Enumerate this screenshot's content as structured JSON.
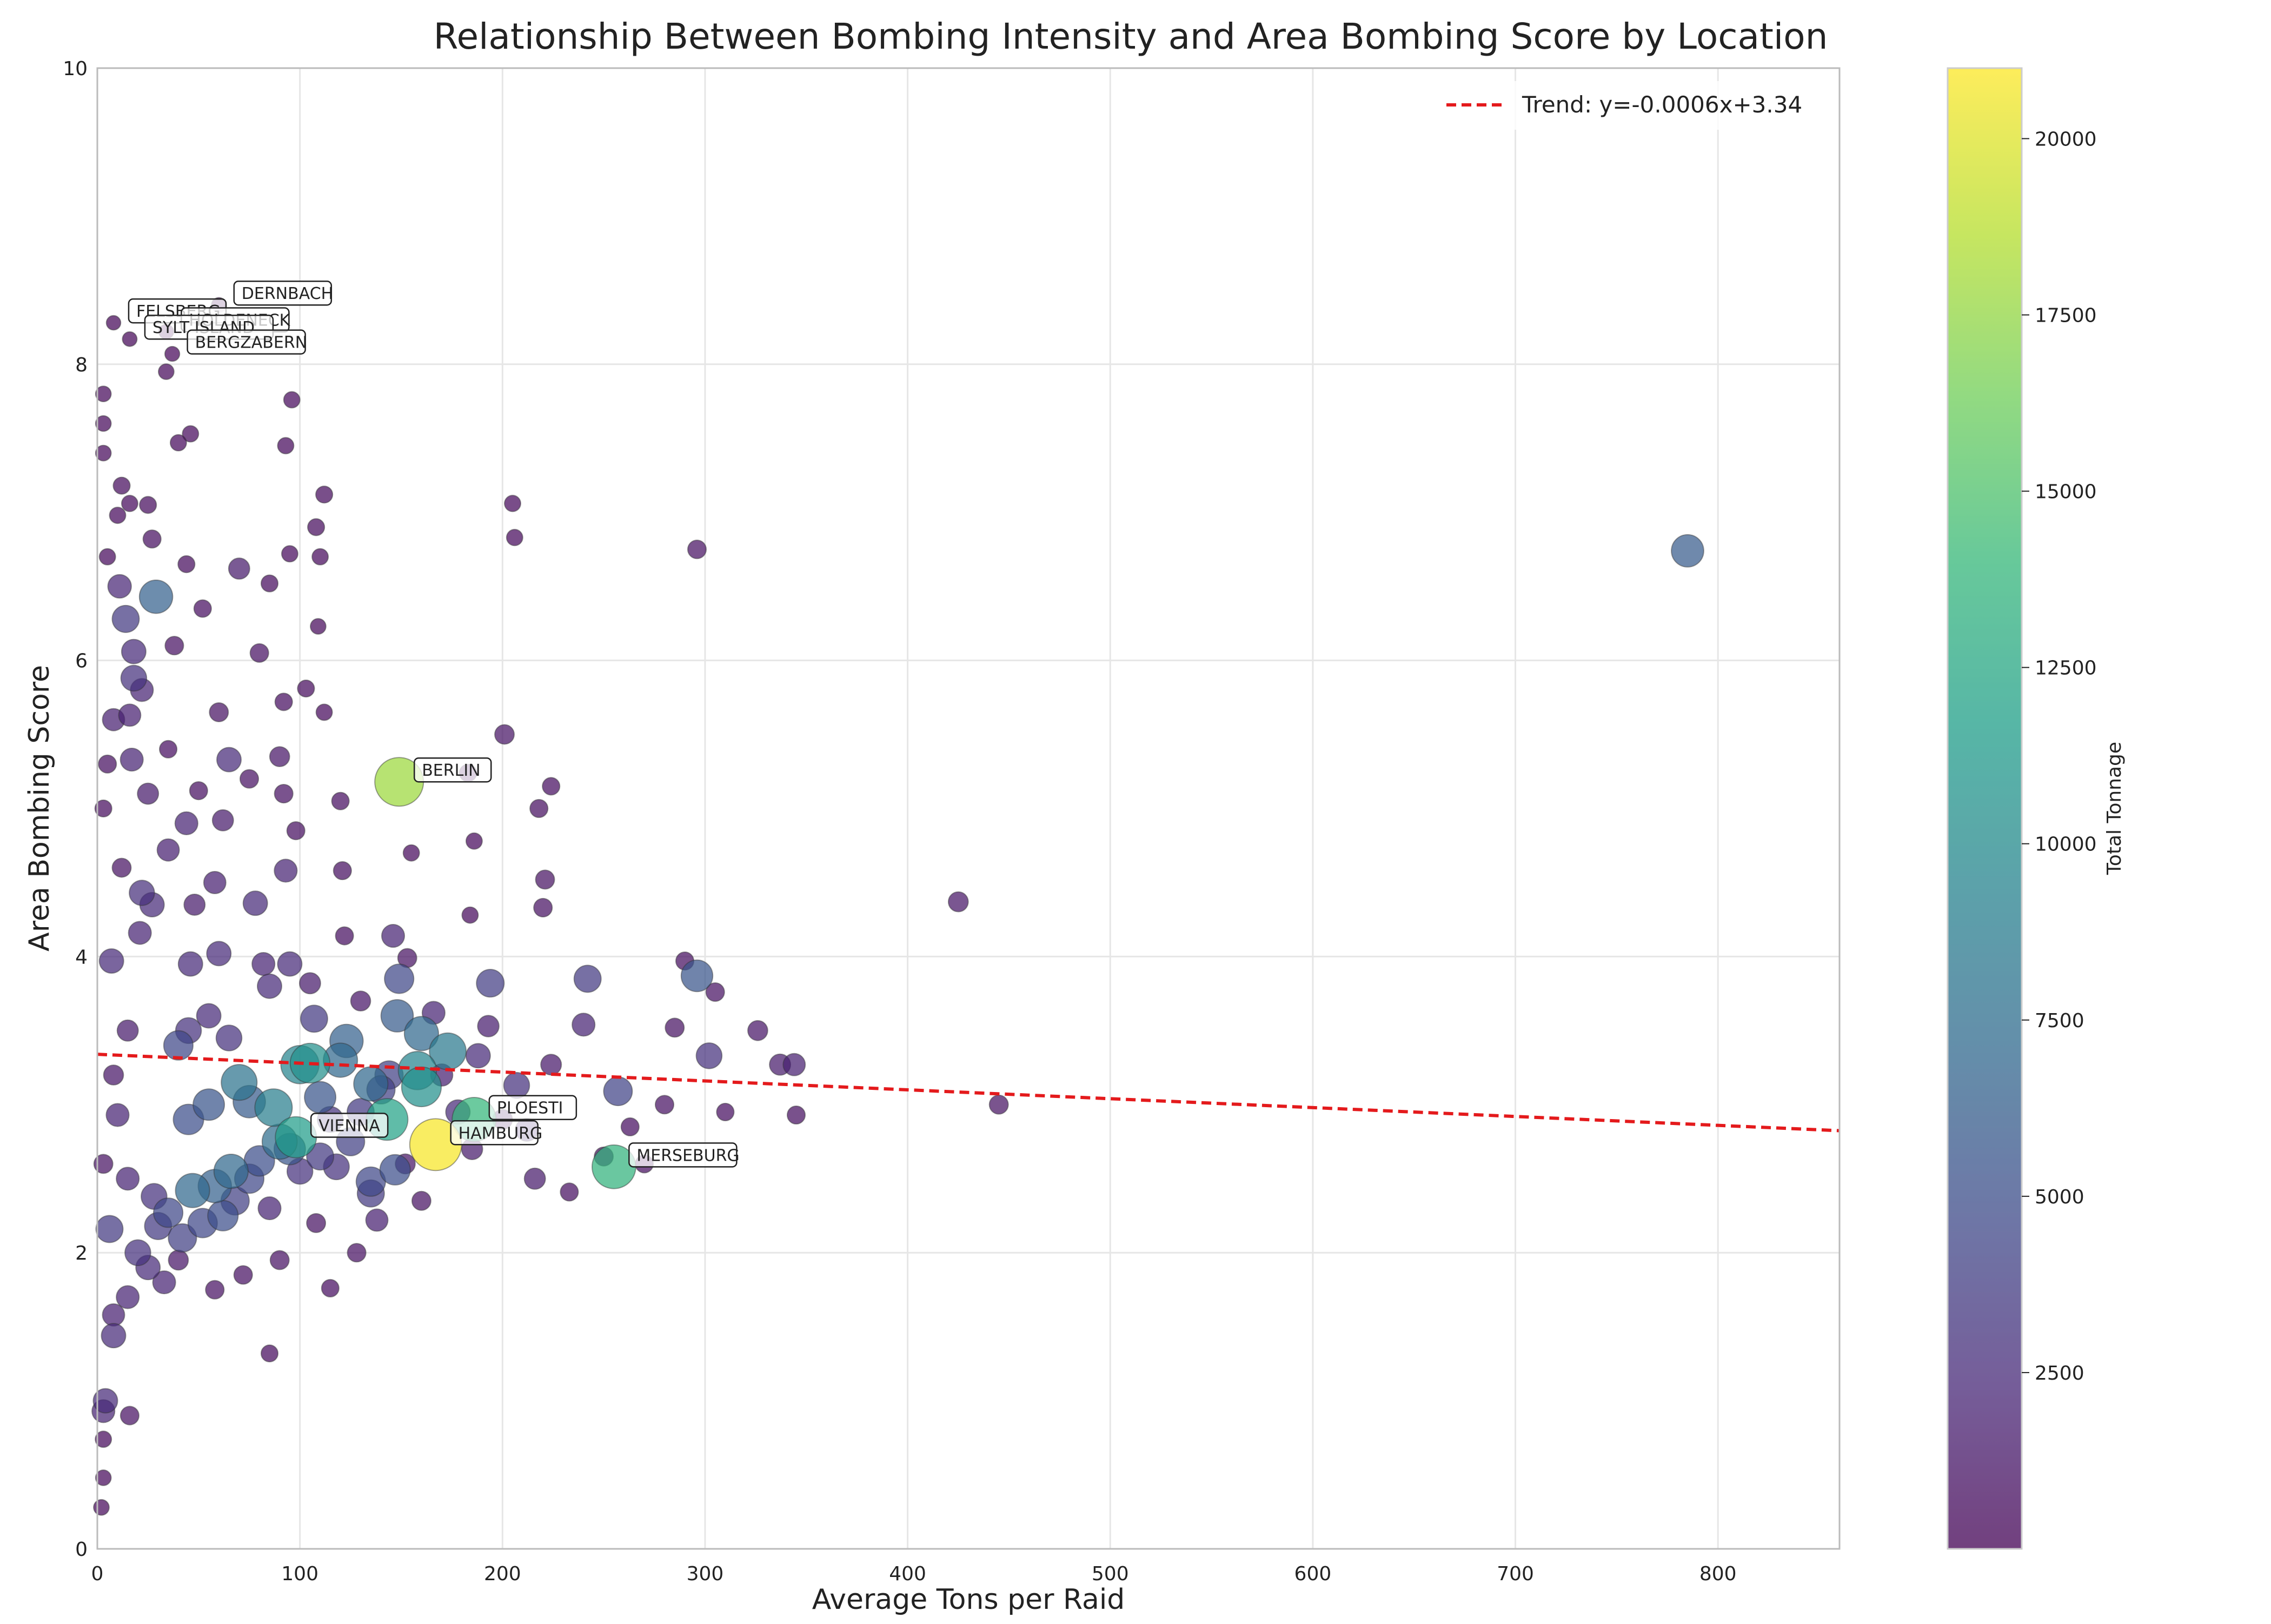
{
  "chart_data": {
    "type": "scatter",
    "title": "Relationship Between Bombing Intensity and Area Bombing Score by Location",
    "xlabel": "Average Tons per Raid",
    "ylabel": "Area Bombing Score",
    "xlim": [
      0,
      860
    ],
    "ylim": [
      0,
      10
    ],
    "x_ticks": [
      0,
      100,
      200,
      300,
      400,
      500,
      600,
      700,
      800
    ],
    "y_ticks": [
      0,
      2,
      4,
      6,
      8,
      10
    ],
    "grid": true,
    "legend": {
      "placement": "top-right",
      "entries": [
        "Trend: y=-0.0006x+3.34"
      ]
    },
    "trend": {
      "label": "Trend: y=-0.0006x+3.34",
      "slope": -0.0006,
      "intercept": 3.34,
      "color": "#e41a1c"
    },
    "colorbar": {
      "label": "Total Tonnage",
      "range": [
        0,
        21000
      ],
      "ticks": [
        2500,
        5000,
        7500,
        10000,
        12500,
        15000,
        17500,
        20000
      ],
      "colormap": [
        "#440154",
        "#482878",
        "#3e4989",
        "#31688e",
        "#26828e",
        "#1f9e89",
        "#35b779",
        "#6ece58",
        "#b5de2b",
        "#fde725"
      ]
    },
    "labeled_points": [
      {
        "label": "DERNBACH",
        "x": 60,
        "y": 8.4,
        "tonnage": 300
      },
      {
        "label": "FELSBERG",
        "x": 8,
        "y": 8.28,
        "tonnage": 250
      },
      {
        "label": "HOLDENECK",
        "x": 34,
        "y": 8.22,
        "tonnage": 300
      },
      {
        "label": "SYLT ISLAND",
        "x": 16,
        "y": 8.17,
        "tonnage": 280
      },
      {
        "label": "BERGZABERN",
        "x": 37,
        "y": 8.07,
        "tonnage": 300
      },
      {
        "label": "BERLIN",
        "x": 149,
        "y": 5.18,
        "tonnage": 17800
      },
      {
        "label": "PLOESTI",
        "x": 186,
        "y": 2.9,
        "tonnage": 13800
      },
      {
        "label": "HAMBURG",
        "x": 167,
        "y": 2.73,
        "tonnage": 20800
      },
      {
        "label": "VIENNA",
        "x": 98,
        "y": 2.78,
        "tonnage": 11500
      },
      {
        "label": "MERSEBURG",
        "x": 255,
        "y": 2.58,
        "tonnage": 13500
      }
    ],
    "points": [
      {
        "x": 785,
        "y": 6.74,
        "tonnage": 6000
      },
      {
        "x": 425,
        "y": 4.37,
        "tonnage": 1200
      },
      {
        "x": 445,
        "y": 3.0,
        "tonnage": 1000
      },
      {
        "x": 296,
        "y": 6.75,
        "tonnage": 900
      },
      {
        "x": 296,
        "y": 3.87,
        "tonnage": 5600
      },
      {
        "x": 290,
        "y": 3.97,
        "tonnage": 800
      },
      {
        "x": 305,
        "y": 3.76,
        "tonnage": 900
      },
      {
        "x": 302,
        "y": 3.33,
        "tonnage": 3000
      },
      {
        "x": 326,
        "y": 3.5,
        "tonnage": 1200
      },
      {
        "x": 337,
        "y": 3.27,
        "tonnage": 1500
      },
      {
        "x": 344,
        "y": 3.27,
        "tonnage": 1800
      },
      {
        "x": 345,
        "y": 2.93,
        "tonnage": 800
      },
      {
        "x": 285,
        "y": 3.52,
        "tonnage": 1000
      },
      {
        "x": 280,
        "y": 3.0,
        "tonnage": 900
      },
      {
        "x": 257,
        "y": 3.09,
        "tonnage": 4200
      },
      {
        "x": 242,
        "y": 3.85,
        "tonnage": 3500
      },
      {
        "x": 240,
        "y": 3.54,
        "tonnage": 2000
      },
      {
        "x": 224,
        "y": 5.15,
        "tonnage": 700
      },
      {
        "x": 221,
        "y": 4.52,
        "tonnage": 1000
      },
      {
        "x": 218,
        "y": 5.0,
        "tonnage": 800
      },
      {
        "x": 220,
        "y": 4.33,
        "tonnage": 900
      },
      {
        "x": 205,
        "y": 7.06,
        "tonnage": 500
      },
      {
        "x": 206,
        "y": 6.83,
        "tonnage": 500
      },
      {
        "x": 201,
        "y": 5.5,
        "tonnage": 1100
      },
      {
        "x": 194,
        "y": 3.82,
        "tonnage": 3800
      },
      {
        "x": 193,
        "y": 3.53,
        "tonnage": 1600
      },
      {
        "x": 188,
        "y": 3.33,
        "tonnage": 2500
      },
      {
        "x": 207,
        "y": 3.13,
        "tonnage": 3000
      },
      {
        "x": 212,
        "y": 2.83,
        "tonnage": 2000
      },
      {
        "x": 216,
        "y": 2.5,
        "tonnage": 1500
      },
      {
        "x": 233,
        "y": 2.41,
        "tonnage": 800
      },
      {
        "x": 224,
        "y": 3.27,
        "tonnage": 1400
      },
      {
        "x": 186,
        "y": 4.78,
        "tonnage": 500
      },
      {
        "x": 184,
        "y": 4.28,
        "tonnage": 500
      },
      {
        "x": 183,
        "y": 5.24,
        "tonnage": 700
      },
      {
        "x": 173,
        "y": 3.36,
        "tonnage": 8500
      },
      {
        "x": 166,
        "y": 3.62,
        "tonnage": 2000
      },
      {
        "x": 160,
        "y": 3.48,
        "tonnage": 7000
      },
      {
        "x": 158,
        "y": 3.23,
        "tonnage": 9500
      },
      {
        "x": 160,
        "y": 3.12,
        "tonnage": 10500
      },
      {
        "x": 148,
        "y": 3.6,
        "tonnage": 6000
      },
      {
        "x": 149,
        "y": 3.85,
        "tonnage": 4500
      },
      {
        "x": 146,
        "y": 4.14,
        "tonnage": 2000
      },
      {
        "x": 153,
        "y": 3.99,
        "tonnage": 1000
      },
      {
        "x": 155,
        "y": 4.7,
        "tonnage": 500
      },
      {
        "x": 144,
        "y": 3.2,
        "tonnage": 4000
      },
      {
        "x": 135,
        "y": 3.14,
        "tonnage": 7000
      },
      {
        "x": 143,
        "y": 2.9,
        "tonnage": 12000
      },
      {
        "x": 147,
        "y": 2.56,
        "tonnage": 5000
      },
      {
        "x": 135,
        "y": 2.48,
        "tonnage": 4500
      },
      {
        "x": 135,
        "y": 2.4,
        "tonnage": 3500
      },
      {
        "x": 138,
        "y": 2.22,
        "tonnage": 1800
      },
      {
        "x": 123,
        "y": 3.43,
        "tonnage": 6500
      },
      {
        "x": 120,
        "y": 3.3,
        "tonnage": 7000
      },
      {
        "x": 122,
        "y": 4.14,
        "tonnage": 800
      },
      {
        "x": 121,
        "y": 4.58,
        "tonnage": 800
      },
      {
        "x": 112,
        "y": 5.65,
        "tonnage": 500
      },
      {
        "x": 112,
        "y": 7.12,
        "tonnage": 600
      },
      {
        "x": 110,
        "y": 6.7,
        "tonnage": 500
      },
      {
        "x": 108,
        "y": 6.9,
        "tonnage": 600
      },
      {
        "x": 103,
        "y": 5.81,
        "tonnage": 600
      },
      {
        "x": 109,
        "y": 6.23,
        "tonnage": 400
      },
      {
        "x": 105,
        "y": 3.28,
        "tonnage": 10500
      },
      {
        "x": 100,
        "y": 3.27,
        "tonnage": 9500
      },
      {
        "x": 107,
        "y": 3.58,
        "tonnage": 3500
      },
      {
        "x": 110,
        "y": 3.05,
        "tonnage": 5500
      },
      {
        "x": 118,
        "y": 2.58,
        "tonnage": 3000
      },
      {
        "x": 115,
        "y": 1.76,
        "tonnage": 700
      },
      {
        "x": 96,
        "y": 7.76,
        "tonnage": 500
      },
      {
        "x": 93,
        "y": 7.45,
        "tonnage": 500
      },
      {
        "x": 95,
        "y": 6.72,
        "tonnage": 500
      },
      {
        "x": 92,
        "y": 5.72,
        "tonnage": 700
      },
      {
        "x": 90,
        "y": 5.35,
        "tonnage": 1200
      },
      {
        "x": 92,
        "y": 5.1,
        "tonnage": 900
      },
      {
        "x": 93,
        "y": 4.58,
        "tonnage": 2000
      },
      {
        "x": 87,
        "y": 2.98,
        "tonnage": 9000
      },
      {
        "x": 90,
        "y": 2.75,
        "tonnage": 7500
      },
      {
        "x": 85,
        "y": 1.32,
        "tonnage": 600
      },
      {
        "x": 80,
        "y": 6.05,
        "tonnage": 900
      },
      {
        "x": 78,
        "y": 4.36,
        "tonnage": 2500
      },
      {
        "x": 82,
        "y": 3.95,
        "tonnage": 2000
      },
      {
        "x": 75,
        "y": 3.02,
        "tonnage": 6000
      },
      {
        "x": 70,
        "y": 3.15,
        "tonnage": 8000
      },
      {
        "x": 66,
        "y": 2.55,
        "tonnage": 7000
      },
      {
        "x": 70,
        "y": 6.62,
        "tonnage": 1500
      },
      {
        "x": 65,
        "y": 5.33,
        "tonnage": 2500
      },
      {
        "x": 60,
        "y": 5.65,
        "tonnage": 1000
      },
      {
        "x": 62,
        "y": 4.92,
        "tonnage": 1500
      },
      {
        "x": 58,
        "y": 4.5,
        "tonnage": 1800
      },
      {
        "x": 60,
        "y": 4.02,
        "tonnage": 2500
      },
      {
        "x": 55,
        "y": 3.0,
        "tonnage": 5500
      },
      {
        "x": 58,
        "y": 2.45,
        "tonnage": 6500
      },
      {
        "x": 48,
        "y": 4.35,
        "tonnage": 1500
      },
      {
        "x": 44,
        "y": 4.9,
        "tonnage": 2000
      },
      {
        "x": 46,
        "y": 3.95,
        "tonnage": 2500
      },
      {
        "x": 45,
        "y": 3.5,
        "tonnage": 3000
      },
      {
        "x": 40,
        "y": 3.4,
        "tonnage": 4500
      },
      {
        "x": 45,
        "y": 2.9,
        "tonnage": 5000
      },
      {
        "x": 47,
        "y": 2.42,
        "tonnage": 7000
      },
      {
        "x": 42,
        "y": 2.1,
        "tonnage": 4000
      },
      {
        "x": 44,
        "y": 6.65,
        "tonnage": 600
      },
      {
        "x": 46,
        "y": 7.53,
        "tonnage": 500
      },
      {
        "x": 40,
        "y": 7.47,
        "tonnage": 500
      },
      {
        "x": 34,
        "y": 7.95,
        "tonnage": 400
      },
      {
        "x": 29,
        "y": 6.43,
        "tonnage": 6500
      },
      {
        "x": 27,
        "y": 6.82,
        "tonnage": 800
      },
      {
        "x": 25,
        "y": 7.05,
        "tonnage": 600
      },
      {
        "x": 16,
        "y": 7.06,
        "tonnage": 500
      },
      {
        "x": 12,
        "y": 7.18,
        "tonnage": 600
      },
      {
        "x": 10,
        "y": 6.98,
        "tonnage": 500
      },
      {
        "x": 3,
        "y": 7.8,
        "tonnage": 400
      },
      {
        "x": 3,
        "y": 7.6,
        "tonnage": 400
      },
      {
        "x": 3,
        "y": 7.4,
        "tonnage": 400
      },
      {
        "x": 5,
        "y": 6.7,
        "tonnage": 500
      },
      {
        "x": 11,
        "y": 6.5,
        "tonnage": 2200
      },
      {
        "x": 14,
        "y": 6.28,
        "tonnage": 3500
      },
      {
        "x": 18,
        "y": 6.06,
        "tonnage": 2500
      },
      {
        "x": 18,
        "y": 5.88,
        "tonnage": 3000
      },
      {
        "x": 22,
        "y": 5.8,
        "tonnage": 2000
      },
      {
        "x": 8,
        "y": 5.6,
        "tonnage": 1800
      },
      {
        "x": 16,
        "y": 5.63,
        "tonnage": 1800
      },
      {
        "x": 17,
        "y": 5.33,
        "tonnage": 2000
      },
      {
        "x": 5,
        "y": 5.3,
        "tonnage": 800
      },
      {
        "x": 3,
        "y": 5.0,
        "tonnage": 600
      },
      {
        "x": 22,
        "y": 4.43,
        "tonnage": 2800
      },
      {
        "x": 27,
        "y": 4.35,
        "tonnage": 2500
      },
      {
        "x": 21,
        "y": 4.16,
        "tonnage": 2000
      },
      {
        "x": 7,
        "y": 3.97,
        "tonnage": 2500
      },
      {
        "x": 15,
        "y": 3.5,
        "tonnage": 1500
      },
      {
        "x": 8,
        "y": 3.2,
        "tonnage": 1200
      },
      {
        "x": 10,
        "y": 2.93,
        "tonnage": 2000
      },
      {
        "x": 3,
        "y": 2.6,
        "tonnage": 1000
      },
      {
        "x": 6,
        "y": 2.16,
        "tonnage": 3500
      },
      {
        "x": 20,
        "y": 2.0,
        "tonnage": 3000
      },
      {
        "x": 25,
        "y": 1.9,
        "tonnage": 2500
      },
      {
        "x": 15,
        "y": 1.7,
        "tonnage": 2000
      },
      {
        "x": 8,
        "y": 1.58,
        "tonnage": 1800
      },
      {
        "x": 8,
        "y": 1.44,
        "tonnage": 2500
      },
      {
        "x": 4,
        "y": 1.0,
        "tonnage": 2500
      },
      {
        "x": 3,
        "y": 0.93,
        "tonnage": 2000
      },
      {
        "x": 16,
        "y": 0.9,
        "tonnage": 900
      },
      {
        "x": 3,
        "y": 0.74,
        "tonnage": 500
      },
      {
        "x": 3,
        "y": 0.48,
        "tonnage": 400
      },
      {
        "x": 2,
        "y": 0.28,
        "tonnage": 400
      },
      {
        "x": 35,
        "y": 2.27,
        "tonnage": 4500
      },
      {
        "x": 30,
        "y": 2.18,
        "tonnage": 3500
      },
      {
        "x": 28,
        "y": 2.38,
        "tonnage": 3000
      },
      {
        "x": 33,
        "y": 1.8,
        "tonnage": 2000
      },
      {
        "x": 52,
        "y": 2.2,
        "tonnage": 4500
      },
      {
        "x": 62,
        "y": 2.25,
        "tonnage": 5000
      },
      {
        "x": 68,
        "y": 2.35,
        "tonnage": 4000
      },
      {
        "x": 75,
        "y": 2.5,
        "tonnage": 4500
      },
      {
        "x": 80,
        "y": 2.62,
        "tonnage": 5000
      },
      {
        "x": 95,
        "y": 2.7,
        "tonnage": 5500
      },
      {
        "x": 100,
        "y": 2.55,
        "tonnage": 3000
      },
      {
        "x": 110,
        "y": 2.65,
        "tonnage": 3500
      },
      {
        "x": 125,
        "y": 2.75,
        "tonnage": 4000
      },
      {
        "x": 130,
        "y": 2.95,
        "tonnage": 3500
      },
      {
        "x": 140,
        "y": 3.1,
        "tonnage": 4000
      },
      {
        "x": 115,
        "y": 2.9,
        "tonnage": 3000
      },
      {
        "x": 85,
        "y": 2.3,
        "tonnage": 2000
      },
      {
        "x": 58,
        "y": 1.75,
        "tonnage": 900
      },
      {
        "x": 72,
        "y": 1.85,
        "tonnage": 900
      },
      {
        "x": 40,
        "y": 1.95,
        "tonnage": 1200
      },
      {
        "x": 55,
        "y": 3.6,
        "tonnage": 2500
      },
      {
        "x": 65,
        "y": 3.45,
        "tonnage": 3000
      },
      {
        "x": 85,
        "y": 3.8,
        "tonnage": 2500
      },
      {
        "x": 95,
        "y": 3.95,
        "tonnage": 2500
      },
      {
        "x": 105,
        "y": 3.82,
        "tonnage": 1500
      },
      {
        "x": 130,
        "y": 3.7,
        "tonnage": 1200
      },
      {
        "x": 170,
        "y": 3.2,
        "tonnage": 1800
      },
      {
        "x": 178,
        "y": 2.95,
        "tonnage": 2500
      },
      {
        "x": 185,
        "y": 2.7,
        "tonnage": 1500
      },
      {
        "x": 200,
        "y": 2.9,
        "tonnage": 1200
      },
      {
        "x": 250,
        "y": 2.65,
        "tonnage": 1000
      },
      {
        "x": 263,
        "y": 2.85,
        "tonnage": 800
      },
      {
        "x": 270,
        "y": 2.6,
        "tonnage": 800
      },
      {
        "x": 310,
        "y": 2.95,
        "tonnage": 700
      },
      {
        "x": 160,
        "y": 2.35,
        "tonnage": 1000
      },
      {
        "x": 152,
        "y": 2.6,
        "tonnage": 1200
      },
      {
        "x": 128,
        "y": 2.0,
        "tonnage": 900
      },
      {
        "x": 108,
        "y": 2.2,
        "tonnage": 1000
      },
      {
        "x": 90,
        "y": 1.95,
        "tonnage": 1000
      },
      {
        "x": 120,
        "y": 5.05,
        "tonnage": 700
      },
      {
        "x": 98,
        "y": 4.85,
        "tonnage": 800
      },
      {
        "x": 75,
        "y": 5.2,
        "tonnage": 900
      },
      {
        "x": 50,
        "y": 5.12,
        "tonnage": 800
      },
      {
        "x": 35,
        "y": 5.4,
        "tonnage": 700
      },
      {
        "x": 38,
        "y": 6.1,
        "tonnage": 900
      },
      {
        "x": 52,
        "y": 6.35,
        "tonnage": 700
      },
      {
        "x": 85,
        "y": 6.52,
        "tonnage": 600
      },
      {
        "x": 35,
        "y": 4.72,
        "tonnage": 1800
      },
      {
        "x": 25,
        "y": 5.1,
        "tonnage": 1500
      },
      {
        "x": 12,
        "y": 4.6,
        "tonnage": 1000
      },
      {
        "x": 15,
        "y": 2.5,
        "tonnage": 2000
      }
    ]
  }
}
